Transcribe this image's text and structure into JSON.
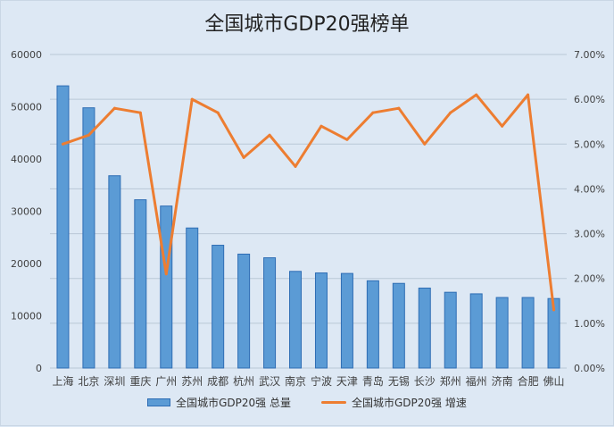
{
  "chart_data": {
    "type": "bar+line",
    "title": "全国城市GDP20强榜单",
    "categories": [
      "上海",
      "北京",
      "深圳",
      "重庆",
      "广州",
      "苏州",
      "成都",
      "杭州",
      "武汉",
      "南京",
      "宁波",
      "天津",
      "青岛",
      "无锡",
      "长沙",
      "郑州",
      "福州",
      "济南",
      "合肥",
      "佛山"
    ],
    "series": [
      {
        "name": "全国城市GDP20强 总量",
        "type": "bar",
        "axis": "left",
        "color": "#5b9bd5",
        "values": [
          54000,
          49800,
          36800,
          32200,
          31000,
          26800,
          23500,
          21800,
          21100,
          18500,
          18200,
          18100,
          16700,
          16200,
          15300,
          14500,
          14200,
          13500,
          13500,
          13300
        ]
      },
      {
        "name": "全国城市GDP20强 增速",
        "type": "line",
        "axis": "right",
        "color": "#ed7d31",
        "values": [
          0.05,
          0.052,
          0.058,
          0.057,
          0.021,
          0.06,
          0.057,
          0.047,
          0.052,
          0.045,
          0.054,
          0.051,
          0.057,
          0.058,
          0.05,
          0.057,
          0.061,
          0.054,
          0.061,
          0.013
        ]
      }
    ],
    "y_left": {
      "min": 0,
      "max": 60000,
      "ticks": [
        "0",
        "10000",
        "20000",
        "30000",
        "40000",
        "50000",
        "60000"
      ]
    },
    "y_right": {
      "min": 0,
      "max": 0.07,
      "ticks": [
        "0.00%",
        "1.00%",
        "2.00%",
        "3.00%",
        "4.00%",
        "5.00%",
        "6.00%",
        "7.00%"
      ]
    },
    "grid": true,
    "legend_position": "bottom"
  }
}
